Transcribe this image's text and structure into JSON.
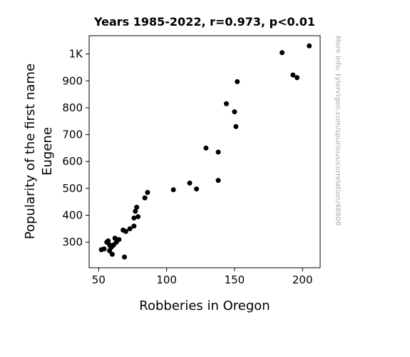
{
  "chart_data": {
    "type": "scatter",
    "title": "Years 1985-2022, r=0.973, p<0.01",
    "xlabel": "Robberies in Oregon",
    "ylabel_lines": [
      "Popularity of the first name",
      "Eugene"
    ],
    "xlim": [
      43,
      213
    ],
    "ylim": [
      205,
      1068
    ],
    "xticks": [
      {
        "value": 50,
        "label": "50"
      },
      {
        "value": 100,
        "label": "100"
      },
      {
        "value": 150,
        "label": "150"
      },
      {
        "value": 200,
        "label": "200"
      }
    ],
    "yticks": [
      {
        "value": 300,
        "label": "300"
      },
      {
        "value": 400,
        "label": "400"
      },
      {
        "value": 500,
        "label": "500"
      },
      {
        "value": 600,
        "label": "600"
      },
      {
        "value": 700,
        "label": "700"
      },
      {
        "value": 800,
        "label": "800"
      },
      {
        "value": 900,
        "label": "900"
      },
      {
        "value": 1000,
        "label": "1K"
      }
    ],
    "marker_color": "#000000",
    "grid": false,
    "points": [
      [
        52,
        272
      ],
      [
        54,
        275
      ],
      [
        56,
        300
      ],
      [
        57,
        305
      ],
      [
        58,
        290
      ],
      [
        58,
        268
      ],
      [
        59,
        280
      ],
      [
        60,
        255
      ],
      [
        60,
        285
      ],
      [
        61,
        290
      ],
      [
        62,
        315
      ],
      [
        63,
        300
      ],
      [
        65,
        310
      ],
      [
        68,
        345
      ],
      [
        69,
        245
      ],
      [
        70,
        340
      ],
      [
        73,
        350
      ],
      [
        76,
        360
      ],
      [
        76,
        390
      ],
      [
        77,
        415
      ],
      [
        78,
        430
      ],
      [
        79,
        395
      ],
      [
        84,
        465
      ],
      [
        86,
        485
      ],
      [
        105,
        495
      ],
      [
        117,
        520
      ],
      [
        122,
        498
      ],
      [
        129,
        650
      ],
      [
        138,
        530
      ],
      [
        138,
        635
      ],
      [
        144,
        815
      ],
      [
        150,
        785
      ],
      [
        151,
        730
      ],
      [
        152,
        897
      ],
      [
        185,
        1005
      ],
      [
        193,
        922
      ],
      [
        196,
        912
      ],
      [
        205,
        1030
      ]
    ]
  },
  "watermark": "More info: tylervigen.com/spurious/correlation/48608"
}
